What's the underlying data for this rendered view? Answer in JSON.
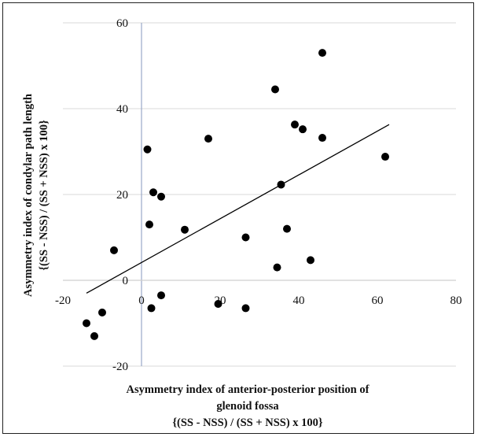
{
  "chart_data": {
    "type": "scatter",
    "xlabel_lines": [
      "Asymmetry index of anterior-posterior position of",
      "glenoid fossa",
      "{(SS - NSS) / (SS + NSS) x 100}"
    ],
    "ylabel_lines": [
      "Asymmetry index of condylar path length",
      "{(SS - NSS) / (SS + NSS) x 100}"
    ],
    "xlim": [
      -20,
      80
    ],
    "ylim": [
      -20,
      60
    ],
    "x_ticks": [
      "-20",
      "0",
      "20",
      "40",
      "60",
      "80"
    ],
    "y_ticks": [
      "-20",
      "0",
      "20",
      "40",
      "60"
    ],
    "grid": "horizontal",
    "legend": "none",
    "colors": {
      "points": "#000000",
      "grid": "#d9d9d9",
      "axis": "#9aa8c8",
      "trend": "#000000"
    },
    "points": [
      {
        "x": -14,
        "y": -10
      },
      {
        "x": -12,
        "y": -13
      },
      {
        "x": -10,
        "y": -7.5
      },
      {
        "x": -7,
        "y": 7
      },
      {
        "x": 1.5,
        "y": 30.5
      },
      {
        "x": 2,
        "y": 13
      },
      {
        "x": 2.5,
        "y": -6.5
      },
      {
        "x": 3,
        "y": 20.5
      },
      {
        "x": 5,
        "y": 19.5
      },
      {
        "x": 5,
        "y": -3.5
      },
      {
        "x": 11,
        "y": 11.8
      },
      {
        "x": 17,
        "y": 33
      },
      {
        "x": 19.5,
        "y": -5.5
      },
      {
        "x": 26.5,
        "y": 10
      },
      {
        "x": 26.5,
        "y": -6.5
      },
      {
        "x": 34,
        "y": 44.5
      },
      {
        "x": 34.5,
        "y": 3
      },
      {
        "x": 35.5,
        "y": 22.3
      },
      {
        "x": 37,
        "y": 12
      },
      {
        "x": 39,
        "y": 36.3
      },
      {
        "x": 41,
        "y": 35.2
      },
      {
        "x": 43,
        "y": 4.7
      },
      {
        "x": 46,
        "y": 53
      },
      {
        "x": 46,
        "y": 33.2
      },
      {
        "x": 62,
        "y": 28.8
      }
    ],
    "trendline": [
      {
        "x": -14,
        "y": -3
      },
      {
        "x": 63,
        "y": 36.3
      }
    ]
  }
}
